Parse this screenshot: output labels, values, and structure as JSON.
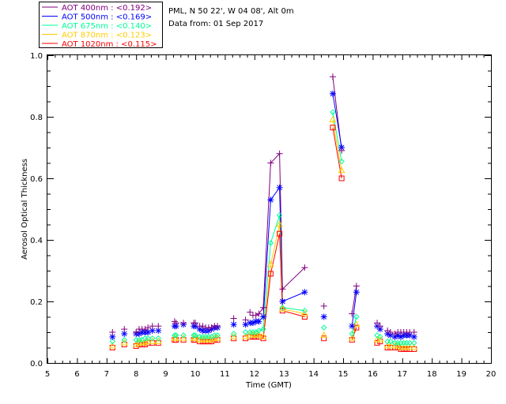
{
  "header": {
    "site": "PML, N 50 22', W 04 08', Alt 0m",
    "date": "Data from: 01 Sep 2017"
  },
  "chart_data": {
    "type": "scatter",
    "title": "",
    "xlabel": "Time (GMT)",
    "ylabel": "Aerosol Optical Thickness",
    "xlim": [
      5,
      20
    ],
    "ylim": [
      0,
      1.0
    ],
    "xticks": [
      "5",
      "6",
      "7",
      "8",
      "9",
      "10",
      "11",
      "12",
      "13",
      "14",
      "15",
      "16",
      "17",
      "18",
      "19",
      "20"
    ],
    "yticks": [
      "0.0",
      "0.2",
      "0.4",
      "0.6",
      "0.8",
      "1.0"
    ],
    "grid": false,
    "legend_position": "top-left, outside plot",
    "x": [
      7.2,
      7.6,
      8.0,
      8.1,
      8.2,
      8.3,
      8.4,
      8.55,
      8.75,
      9.3,
      9.35,
      9.6,
      9.95,
      10.0,
      10.15,
      10.25,
      10.35,
      10.45,
      10.55,
      10.65,
      10.75,
      11.3,
      11.7,
      11.85,
      11.95,
      12.05,
      12.15,
      12.3,
      12.55,
      12.85,
      12.95,
      13.7,
      14.35,
      14.65,
      14.95,
      15.3,
      15.45,
      16.15,
      16.25,
      16.5,
      16.6,
      16.75,
      16.85,
      16.95,
      17.05,
      17.15,
      17.25,
      17.4
    ],
    "series": [
      {
        "name": "AOT  400nm : <0.192>",
        "marker": "plus",
        "color": "#800080",
        "values": [
          0.1,
          0.11,
          0.1,
          0.11,
          0.11,
          0.11,
          0.115,
          0.12,
          0.12,
          0.135,
          0.13,
          0.13,
          0.13,
          0.13,
          0.12,
          0.12,
          0.115,
          0.115,
          0.115,
          0.12,
          0.12,
          0.145,
          0.14,
          0.165,
          0.155,
          0.155,
          0.16,
          0.18,
          0.65,
          0.68,
          0.24,
          0.31,
          0.185,
          0.93,
          0.69,
          0.16,
          0.25,
          0.13,
          0.12,
          0.105,
          0.1,
          0.095,
          0.1,
          0.1,
          0.1,
          0.1,
          0.1,
          0.1
        ]
      },
      {
        "name": "AOT  500nm : <0.169>",
        "marker": "asterisk",
        "color": "#0000ff",
        "values": [
          0.085,
          0.095,
          0.095,
          0.095,
          0.1,
          0.1,
          0.1,
          0.105,
          0.105,
          0.12,
          0.12,
          0.125,
          0.12,
          0.12,
          0.11,
          0.105,
          0.105,
          0.105,
          0.11,
          0.115,
          0.115,
          0.125,
          0.125,
          0.13,
          0.13,
          0.135,
          0.135,
          0.15,
          0.53,
          0.57,
          0.2,
          0.23,
          0.15,
          0.875,
          0.7,
          0.12,
          0.23,
          0.12,
          0.11,
          0.095,
          0.09,
          0.085,
          0.09,
          0.085,
          0.09,
          0.09,
          0.09,
          0.085
        ]
      },
      {
        "name": "AOT  675nm : <0.140>",
        "marker": "diamond",
        "color": "#00ff99",
        "values": [
          0.07,
          0.075,
          0.075,
          0.075,
          0.075,
          0.08,
          0.08,
          0.08,
          0.08,
          0.09,
          0.09,
          0.09,
          0.09,
          0.09,
          0.085,
          0.085,
          0.085,
          0.085,
          0.085,
          0.09,
          0.09,
          0.095,
          0.1,
          0.1,
          0.1,
          0.1,
          0.105,
          0.11,
          0.39,
          0.48,
          0.18,
          0.17,
          0.115,
          0.815,
          0.655,
          0.095,
          0.15,
          0.09,
          0.085,
          0.07,
          0.07,
          0.065,
          0.065,
          0.065,
          0.065,
          0.065,
          0.065,
          0.065
        ]
      },
      {
        "name": "AOT  870nm : <0.123>",
        "marker": "triangle",
        "color": "#ffcc00",
        "values": [
          0.055,
          0.065,
          0.06,
          0.065,
          0.065,
          0.065,
          0.07,
          0.07,
          0.07,
          0.08,
          0.08,
          0.08,
          0.08,
          0.08,
          0.075,
          0.075,
          0.075,
          0.075,
          0.075,
          0.08,
          0.08,
          0.085,
          0.085,
          0.09,
          0.09,
          0.09,
          0.09,
          0.085,
          0.32,
          0.45,
          0.175,
          0.16,
          0.09,
          0.79,
          0.625,
          0.08,
          0.125,
          0.075,
          0.075,
          0.055,
          0.055,
          0.055,
          0.055,
          0.05,
          0.05,
          0.05,
          0.05,
          0.05
        ]
      },
      {
        "name": "AOT 1020nm : <0.115>",
        "marker": "square",
        "color": "#ff0000",
        "values": [
          0.05,
          0.06,
          0.055,
          0.06,
          0.06,
          0.06,
          0.065,
          0.065,
          0.065,
          0.075,
          0.075,
          0.075,
          0.075,
          0.075,
          0.07,
          0.07,
          0.07,
          0.07,
          0.07,
          0.075,
          0.075,
          0.08,
          0.08,
          0.085,
          0.085,
          0.085,
          0.085,
          0.08,
          0.29,
          0.42,
          0.17,
          0.15,
          0.08,
          0.765,
          0.6,
          0.075,
          0.115,
          0.065,
          0.07,
          0.05,
          0.05,
          0.05,
          0.05,
          0.045,
          0.045,
          0.045,
          0.045,
          0.045
        ]
      }
    ]
  }
}
